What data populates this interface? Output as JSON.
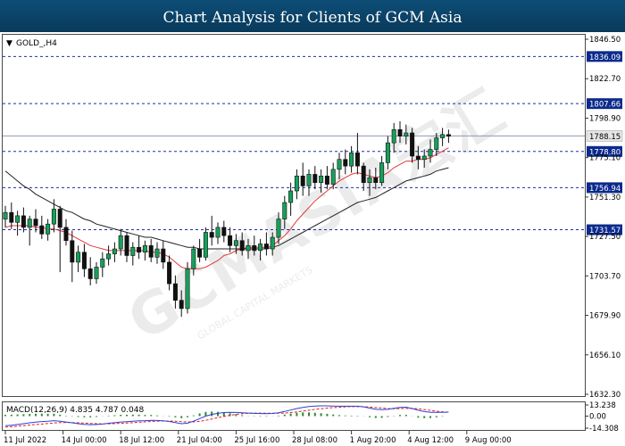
{
  "header": {
    "title": "Chart Analysis for Clients of GCM Asia",
    "background": "#0b4469",
    "text_color": "#ffffff"
  },
  "watermark": {
    "text": "GCMASIA宏汇",
    "subtext": "GLOBAL CAPITAL MARKETS"
  },
  "colors": {
    "bull_candle": "#16a05a",
    "bear_candle": "#111111",
    "ma_fast": "#e03b3b",
    "ma_slow": "#222222",
    "level_line": "#1f2f9e",
    "macd_line": "#2f3fd6",
    "signal_line": "#e02020",
    "histogram": "#2d8a2d"
  },
  "chart_data": [
    {
      "type": "candlestick",
      "symbol_label": "GOLD_,H4",
      "ylim": [
        1632.3,
        1846.5
      ],
      "y_ticks": [
        "1846.50",
        "1822.70",
        "1798.90",
        "1775.10",
        "1751.30",
        "1727.50",
        "1703.70",
        "1679.90",
        "1656.10",
        "1632.30"
      ],
      "x_ticks": [
        "11 Jul 2022",
        "14 Jul 00:00",
        "18 Jul 12:00",
        "21 Jul 04:00",
        "25 Jul 16:00",
        "28 Jul 08:00",
        "1 Aug 20:00",
        "4 Aug 12:00",
        "9 Aug 00:00"
      ],
      "x_tick_positions": [
        0,
        9.5,
        19,
        28.5,
        38,
        47.5,
        57,
        66.5,
        76
      ],
      "horizontal_levels": [
        1836.09,
        1807.66,
        1778.8,
        1756.94,
        1731.57
      ],
      "current_price": 1788.15,
      "candles": [
        [
          1738.0,
          1746.0,
          1733.0,
          1742.0
        ],
        [
          1742.0,
          1748.0,
          1732.0,
          1736.0
        ],
        [
          1736.0,
          1743.0,
          1728.0,
          1740.0
        ],
        [
          1740.0,
          1745.0,
          1730.0,
          1733.0
        ],
        [
          1733.0,
          1740.0,
          1722.0,
          1738.0
        ],
        [
          1738.0,
          1744.0,
          1730.0,
          1734.0
        ],
        [
          1734.0,
          1740.0,
          1726.0,
          1729.0
        ],
        [
          1729.0,
          1738.0,
          1725.0,
          1735.0
        ],
        [
          1735.0,
          1750.0,
          1730.0,
          1744.0
        ],
        [
          1744.0,
          1746.0,
          1706.0,
          1733.0
        ],
        [
          1733.0,
          1738.0,
          1722.0,
          1725.0
        ],
        [
          1725.0,
          1731.0,
          1700.0,
          1712.0
        ],
        [
          1712.0,
          1722.0,
          1706.0,
          1718.0
        ],
        [
          1718.0,
          1723.0,
          1703.0,
          1708.0
        ],
        [
          1708.0,
          1715.0,
          1698.0,
          1702.0
        ],
        [
          1702.0,
          1712.0,
          1699.0,
          1709.0
        ],
        [
          1709.0,
          1718.0,
          1703.0,
          1714.0
        ],
        [
          1714.0,
          1722.0,
          1710.0,
          1717.0
        ],
        [
          1717.0,
          1724.0,
          1712.0,
          1720.0
        ],
        [
          1720.0,
          1732.0,
          1716.0,
          1728.0
        ],
        [
          1728.0,
          1730.0,
          1712.0,
          1716.0
        ],
        [
          1716.0,
          1724.0,
          1710.0,
          1721.0
        ],
        [
          1721.0,
          1728.0,
          1714.0,
          1718.0
        ],
        [
          1718.0,
          1725.0,
          1713.0,
          1722.0
        ],
        [
          1722.0,
          1726.0,
          1712.0,
          1715.0
        ],
        [
          1715.0,
          1724.0,
          1711.0,
          1720.0
        ],
        [
          1720.0,
          1725.0,
          1708.0,
          1712.0
        ],
        [
          1712.0,
          1716.0,
          1695.0,
          1699.0
        ],
        [
          1699.0,
          1704.0,
          1684.0,
          1689.0
        ],
        [
          1689.0,
          1695.0,
          1679.0,
          1684.0
        ],
        [
          1684.0,
          1712.0,
          1681.0,
          1708.0
        ],
        [
          1708.0,
          1722.0,
          1704.0,
          1720.0
        ],
        [
          1720.0,
          1726.0,
          1712.0,
          1715.0
        ],
        [
          1715.0,
          1733.0,
          1713.0,
          1730.0
        ],
        [
          1730.0,
          1740.0,
          1722.0,
          1727.0
        ],
        [
          1727.0,
          1736.0,
          1723.0,
          1733.0
        ],
        [
          1733.0,
          1737.0,
          1724.0,
          1728.0
        ],
        [
          1728.0,
          1733.0,
          1718.0,
          1722.0
        ],
        [
          1722.0,
          1729.0,
          1717.0,
          1725.0
        ],
        [
          1725.0,
          1730.0,
          1716.0,
          1719.0
        ],
        [
          1719.0,
          1726.0,
          1714.0,
          1722.0
        ],
        [
          1722.0,
          1728.0,
          1716.0,
          1719.0
        ],
        [
          1719.0,
          1726.0,
          1713.0,
          1723.0
        ],
        [
          1723.0,
          1730.0,
          1716.0,
          1720.0
        ],
        [
          1720.0,
          1730.0,
          1716.0,
          1727.0
        ],
        [
          1727.0,
          1742.0,
          1723.0,
          1738.0
        ],
        [
          1738.0,
          1752.0,
          1732.0,
          1748.0
        ],
        [
          1748.0,
          1760.0,
          1740.0,
          1755.0
        ],
        [
          1755.0,
          1768.0,
          1750.0,
          1764.0
        ],
        [
          1764.0,
          1772.0,
          1752.0,
          1758.0
        ],
        [
          1758.0,
          1768.0,
          1752.0,
          1765.0
        ],
        [
          1765.0,
          1770.0,
          1756.0,
          1760.0
        ],
        [
          1760.0,
          1768.0,
          1754.0,
          1764.0
        ],
        [
          1764.0,
          1770.0,
          1756.0,
          1759.0
        ],
        [
          1759.0,
          1772.0,
          1756.0,
          1768.0
        ],
        [
          1768.0,
          1778.0,
          1762.0,
          1774.0
        ],
        [
          1774.0,
          1780.0,
          1765.0,
          1770.0
        ],
        [
          1770.0,
          1782.0,
          1766.0,
          1778.0
        ],
        [
          1778.0,
          1790.0,
          1765.0,
          1770.0
        ],
        [
          1770.0,
          1772.0,
          1755.0,
          1760.0
        ],
        [
          1760.0,
          1768.0,
          1752.0,
          1763.0
        ],
        [
          1763.0,
          1769.0,
          1756.0,
          1760.0
        ],
        [
          1760.0,
          1776.0,
          1758.0,
          1772.0
        ],
        [
          1772.0,
          1788.0,
          1768.0,
          1784.0
        ],
        [
          1784.0,
          1796.0,
          1778.0,
          1792.0
        ],
        [
          1792.0,
          1797.0,
          1784.0,
          1788.0
        ],
        [
          1788.0,
          1795.0,
          1783.0,
          1790.0
        ],
        [
          1790.0,
          1793.0,
          1772.0,
          1776.0
        ],
        [
          1776.0,
          1782.0,
          1768.0,
          1774.0
        ],
        [
          1774.0,
          1780.0,
          1769.0,
          1776.0
        ],
        [
          1776.0,
          1786.0,
          1772.0,
          1780.0
        ],
        [
          1780.0,
          1790.0,
          1776.0,
          1787.0
        ],
        [
          1787.0,
          1793.0,
          1782.0,
          1789.0
        ],
        [
          1789.0,
          1792.0,
          1784.0,
          1788.0
        ]
      ],
      "ma_fast_values": [
        1733.0,
        1734.0,
        1734.0,
        1734.0,
        1734.0,
        1733.0,
        1733.0,
        1732.0,
        1732.0,
        1731.0,
        1730.0,
        1728.0,
        1726.0,
        1724.0,
        1722.0,
        1721.0,
        1720.0,
        1719.0,
        1719.0,
        1719.0,
        1719.0,
        1719.0,
        1719.0,
        1719.0,
        1718.0,
        1718.0,
        1717.0,
        1715.0,
        1712.0,
        1709.0,
        1708.0,
        1708.0,
        1708.0,
        1709.0,
        1711.0,
        1713.0,
        1716.0,
        1717.0,
        1719.0,
        1720.0,
        1721.0,
        1721.0,
        1721.0,
        1721.0,
        1722.0,
        1725.0,
        1728.0,
        1732.0,
        1737.0,
        1741.0,
        1745.0,
        1749.0,
        1752.0,
        1755.0,
        1758.0,
        1761.0,
        1763.0,
        1765.0,
        1766.0,
        1765.0,
        1764.0,
        1763.0,
        1764.0,
        1766.0,
        1769.0,
        1771.0,
        1773.0,
        1773.0,
        1774.0,
        1774.0,
        1775.0,
        1777.0,
        1779.0,
        1781.0
      ],
      "ma_slow_values": [
        1767.0,
        1764.0,
        1761.0,
        1758.0,
        1756.0,
        1753.0,
        1751.0,
        1749.0,
        1747.0,
        1745.0,
        1743.0,
        1742.0,
        1740.0,
        1738.0,
        1737.0,
        1735.0,
        1734.0,
        1733.0,
        1732.0,
        1731.0,
        1730.0,
        1729.0,
        1728.0,
        1727.0,
        1727.0,
        1726.0,
        1725.0,
        1724.0,
        1723.0,
        1722.0,
        1721.0,
        1721.0,
        1720.0,
        1720.0,
        1720.0,
        1720.0,
        1720.0,
        1720.0,
        1720.0,
        1720.0,
        1720.0,
        1720.0,
        1720.0,
        1720.0,
        1721.0,
        1722.0,
        1724.0,
        1726.0,
        1728.0,
        1730.0,
        1732.0,
        1734.0,
        1736.0,
        1738.0,
        1740.0,
        1742.0,
        1744.0,
        1746.0,
        1748.0,
        1749.0,
        1750.0,
        1751.0,
        1753.0,
        1755.0,
        1757.0,
        1759.0,
        1761.0,
        1762.0,
        1763.0,
        1764.0,
        1765.0,
        1767.0,
        1768.0,
        1769.0
      ]
    },
    {
      "type": "macd",
      "label": "MACD(12,26,9) 4.835 4.787 0.048",
      "ylim": [
        -14.308,
        13.238
      ],
      "y_ticks": [
        "13.238",
        "0.00",
        "-14.308"
      ],
      "macd_values": [
        -11.5,
        -10.8,
        -10.0,
        -9.0,
        -8.0,
        -7.2,
        -6.5,
        -6.0,
        -5.4,
        -6.0,
        -7.0,
        -8.0,
        -9.0,
        -9.8,
        -10.2,
        -10.0,
        -9.4,
        -8.5,
        -7.8,
        -7.0,
        -6.6,
        -6.0,
        -5.6,
        -5.4,
        -5.0,
        -5.2,
        -5.6,
        -6.4,
        -7.6,
        -9.0,
        -8.4,
        -6.0,
        -3.0,
        0.0,
        2.0,
        3.3,
        4.2,
        4.4,
        4.3,
        4.0,
        3.6,
        3.3,
        3.1,
        3.0,
        3.2,
        4.0,
        5.5,
        7.2,
        9.0,
        10.4,
        11.4,
        12.0,
        12.2,
        12.2,
        12.0,
        11.8,
        11.8,
        11.8,
        11.8,
        11.0,
        9.5,
        8.0,
        7.6,
        8.0,
        9.2,
        10.3,
        10.6,
        9.0,
        7.0,
        5.4,
        4.6,
        4.4,
        4.6,
        4.8
      ],
      "signal_values": [
        -13.0,
        -12.5,
        -12.0,
        -11.3,
        -10.6,
        -10.0,
        -9.4,
        -8.8,
        -8.2,
        -7.7,
        -7.5,
        -7.6,
        -7.9,
        -8.3,
        -8.7,
        -9.0,
        -9.2,
        -9.1,
        -8.9,
        -8.6,
        -8.2,
        -7.8,
        -7.3,
        -6.8,
        -6.4,
        -6.0,
        -5.8,
        -5.8,
        -6.1,
        -6.6,
        -7.0,
        -6.9,
        -6.2,
        -5.0,
        -3.4,
        -1.8,
        -0.4,
        1.0,
        2.1,
        2.9,
        3.4,
        3.6,
        3.6,
        3.5,
        3.4,
        3.4,
        3.6,
        4.2,
        5.0,
        6.0,
        7.0,
        8.0,
        8.8,
        9.5,
        10.1,
        10.6,
        11.0,
        11.2,
        11.3,
        11.2,
        10.8,
        10.2,
        9.6,
        9.0,
        8.8,
        8.9,
        9.1,
        9.2,
        8.8,
        7.8,
        6.8,
        5.8,
        5.1,
        4.8
      ],
      "histogram_values": [
        1.5,
        1.7,
        2.0,
        2.3,
        2.6,
        2.8,
        2.9,
        2.8,
        2.8,
        1.7,
        0.5,
        -0.4,
        -1.1,
        -1.5,
        -1.5,
        -1.0,
        -0.2,
        0.6,
        1.1,
        1.6,
        1.6,
        1.8,
        1.7,
        1.4,
        1.4,
        0.8,
        0.2,
        -0.6,
        -1.5,
        -2.4,
        -1.4,
        0.9,
        3.2,
        5.0,
        5.4,
        5.1,
        4.6,
        3.4,
        2.2,
        1.1,
        0.2,
        -0.3,
        -0.5,
        -0.5,
        -0.2,
        0.6,
        1.9,
        3.0,
        4.0,
        4.4,
        4.4,
        4.0,
        3.4,
        2.7,
        1.9,
        1.2,
        0.8,
        0.6,
        0.5,
        -0.2,
        -1.3,
        -2.2,
        -2.0,
        -1.0,
        0.4,
        1.4,
        1.5,
        -0.2,
        -1.8,
        -2.4,
        -2.2,
        -1.4,
        -0.5,
        0.0
      ]
    }
  ]
}
